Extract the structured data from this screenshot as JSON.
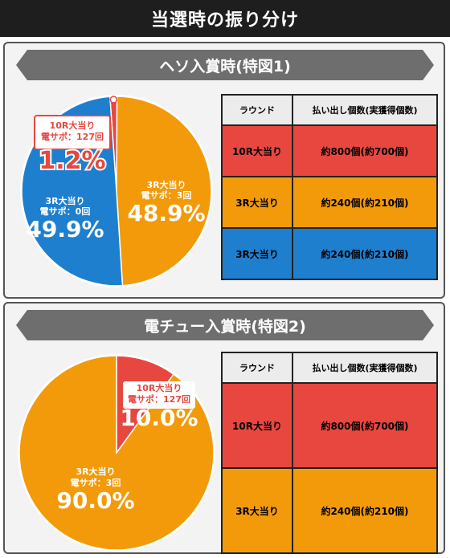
{
  "title": "当選時の振り分け",
  "colors": {
    "red": "#e8473f",
    "orange": "#f39a0a",
    "blue": "#1f7fcf",
    "dark": "#1e1e1e",
    "banner": "#6e6e6e"
  },
  "sections": [
    {
      "banner": "ヘソ入賞時(特図1)",
      "table": {
        "headers": [
          "ラウンド",
          "払い出し個数(実獲得個数)"
        ],
        "rows": [
          {
            "round": "10R大当り",
            "payout": "約800個(約700個)",
            "color": "red"
          },
          {
            "round": "3R大当り",
            "payout": "約240個(約210個)",
            "color": "orange"
          },
          {
            "round": "3R大当り",
            "payout": "約240個(約210個)",
            "color": "blue"
          }
        ]
      }
    },
    {
      "banner": "電チュー入賞時(特図2)",
      "table": {
        "headers": [
          "ラウンド",
          "払い出し個数(実獲得個数)"
        ],
        "rows": [
          {
            "round": "10R大当り",
            "payout": "約800個(約700個)",
            "color": "red"
          },
          {
            "round": "3R大当り",
            "payout": "約240個(約210個)",
            "color": "orange"
          }
        ]
      }
    }
  ],
  "chart_data": [
    {
      "type": "pie",
      "slices": [
        {
          "label": "10R大当り",
          "sub": "電サポ：127回",
          "value": 1.2,
          "value_label": "1.2%",
          "color": "red"
        },
        {
          "label": "3R大当り",
          "sub": "電サポ：3回",
          "value": 48.9,
          "value_label": "48.9%",
          "color": "orange"
        },
        {
          "label": "3R大当り",
          "sub": "電サポ：0回",
          "value": 49.9,
          "value_label": "49.9%",
          "color": "blue"
        }
      ]
    },
    {
      "type": "pie",
      "slices": [
        {
          "label": "10R大当り",
          "sub": "電サポ：127回",
          "value": 10.0,
          "value_label": "10.0%",
          "color": "red"
        },
        {
          "label": "3R大当り",
          "sub": "電サポ：3回",
          "value": 90.0,
          "value_label": "90.0%",
          "color": "orange"
        }
      ]
    }
  ]
}
